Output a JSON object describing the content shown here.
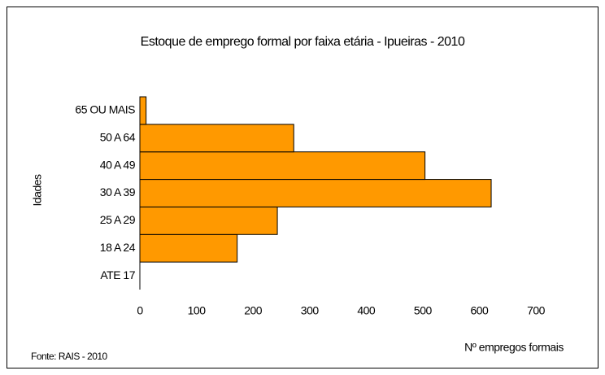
{
  "chart_data": {
    "type": "bar",
    "orientation": "horizontal",
    "title": "Estoque de emprego formal por faixa etária - Ipueiras - 2010",
    "y_label": "Idades",
    "x_label": "Nº empregos formais",
    "source": "Fonte: RAIS - 2010",
    "categories": [
      "ATE 17",
      "18 A 24",
      "25 A 29",
      "30 A 39",
      "40 A 49",
      "50 A 64",
      "65 OU MAIS"
    ],
    "values": [
      0,
      172,
      243,
      621,
      504,
      272,
      11
    ],
    "color": "#ff9900",
    "xlim": [
      0,
      700
    ],
    "xticks": [
      0,
      100,
      200,
      300,
      400,
      500,
      600,
      700
    ],
    "grid": false
  }
}
